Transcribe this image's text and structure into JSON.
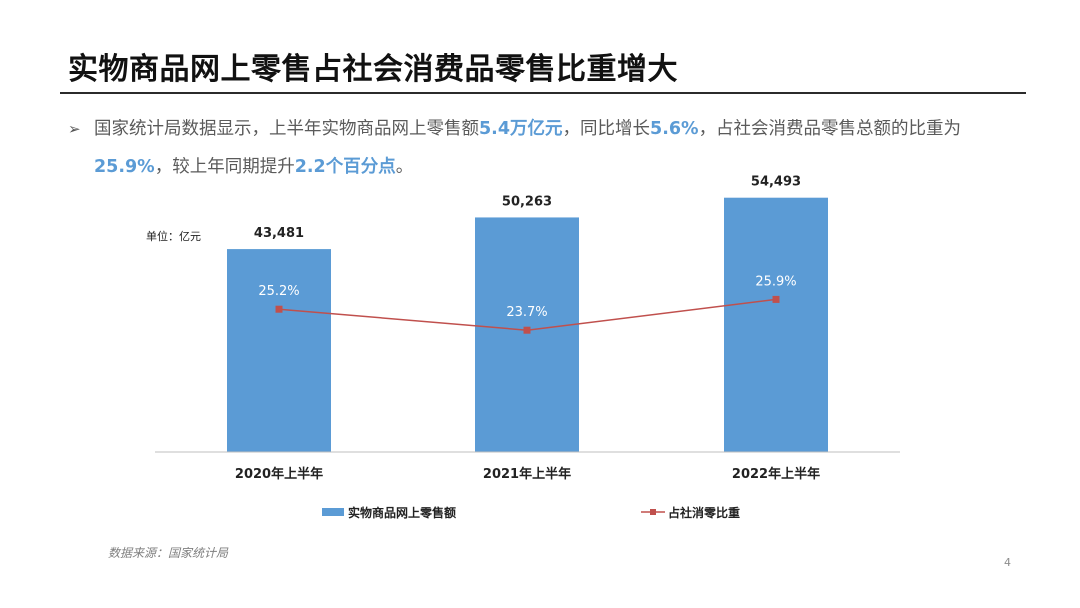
{
  "slide": {
    "title": "实物商品网上零售占社会消费品零售比重增大",
    "bullet_arrow": "➢",
    "bullet_segments": [
      {
        "text": "国家统计局数据显示，上半年实物商品网上零售额",
        "hl": false
      },
      {
        "text": "5.4万亿元",
        "hl": true
      },
      {
        "text": "，同比增长",
        "hl": false
      },
      {
        "text": "5.6%",
        "hl": true
      },
      {
        "text": "，占社会消费品零售总额的比重为",
        "hl": false
      },
      {
        "text": "25.9%",
        "hl": true
      },
      {
        "text": "，较上年同期提升",
        "hl": false
      },
      {
        "text": "2.2个百分点",
        "hl": true
      },
      {
        "text": "。",
        "hl": false
      }
    ],
    "source": "数据来源：国家统计局",
    "page_number": "4"
  },
  "colors": {
    "bar": "#5b9bd5",
    "line": "#c0504d",
    "highlight": "#5b9bd5"
  },
  "chart_data": {
    "type": "bar",
    "unit_label": "单位：亿元",
    "categories": [
      "2020年上半年",
      "2021年上半年",
      "2022年上半年"
    ],
    "series": [
      {
        "name": "实物商品网上零售额",
        "type": "bar",
        "values": [
          43481,
          50263,
          54493
        ],
        "labels": [
          "43,481",
          "50,263",
          "54,493"
        ]
      },
      {
        "name": "占社消零比重",
        "type": "line",
        "values": [
          25.2,
          23.7,
          25.9
        ],
        "labels": [
          "25.2%",
          "23.7%",
          "25.9%"
        ]
      }
    ],
    "ylim": [
      0,
      60000
    ],
    "y2lim": [
      15,
      35
    ],
    "grid": false,
    "legend": "bottom"
  }
}
